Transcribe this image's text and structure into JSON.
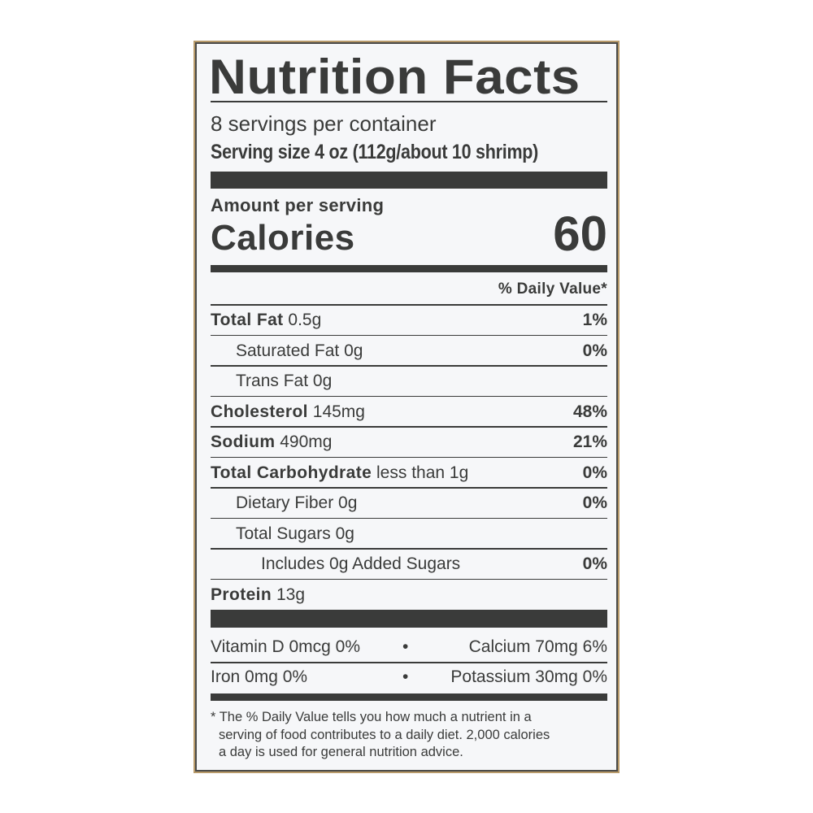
{
  "title": "Nutrition Facts",
  "servings_per_container": "8 servings per container",
  "serving_size": "Serving size 4 oz (112g/about 10 shrimp)",
  "amount_per_serving": "Amount per serving",
  "calories": {
    "label": "Calories",
    "value": "60"
  },
  "daily_value_header": "% Daily Value*",
  "nutrients": [
    {
      "name": "Total Fat",
      "amount": "0.5g",
      "dv": "1%",
      "bold": true,
      "indent": 0
    },
    {
      "name": "Saturated Fat",
      "amount": "0g",
      "dv": "0%",
      "bold": false,
      "indent": 1
    },
    {
      "name": "Trans Fat",
      "amount": "0g",
      "dv": "",
      "bold": false,
      "indent": 1
    },
    {
      "name": "Cholesterol",
      "amount": "145mg",
      "dv": "48%",
      "bold": true,
      "indent": 0
    },
    {
      "name": "Sodium",
      "amount": "490mg",
      "dv": "21%",
      "bold": true,
      "indent": 0
    },
    {
      "name": "Total Carbohydrate",
      "amount": "less than 1g",
      "dv": "0%",
      "bold": true,
      "indent": 0
    },
    {
      "name": "Dietary Fiber",
      "amount": "0g",
      "dv": "0%",
      "bold": false,
      "indent": 1
    },
    {
      "name": "Total Sugars",
      "amount": "0g",
      "dv": "",
      "bold": false,
      "indent": 1
    },
    {
      "name": "Includes 0g Added Sugars",
      "amount": "",
      "dv": "0%",
      "bold": false,
      "indent": 2
    },
    {
      "name": "Protein",
      "amount": "13g",
      "dv": "",
      "bold": true,
      "indent": 0
    }
  ],
  "vitamins": [
    {
      "left": "Vitamin D 0mcg 0%",
      "sep": "•",
      "right": "Calcium 70mg 6%"
    },
    {
      "left": "Iron 0mg 0%",
      "sep": "•",
      "right": "Potassium 30mg 0%"
    }
  ],
  "footnote": [
    "* The % Daily Value tells you how much a nutrient in a",
    "serving of food contributes to a daily diet. 2,000 calories",
    "a day is used for general nutrition advice."
  ],
  "colors": {
    "text": "#3a3b3a",
    "background": "#f6f7f9",
    "border": "#4a4a48"
  }
}
